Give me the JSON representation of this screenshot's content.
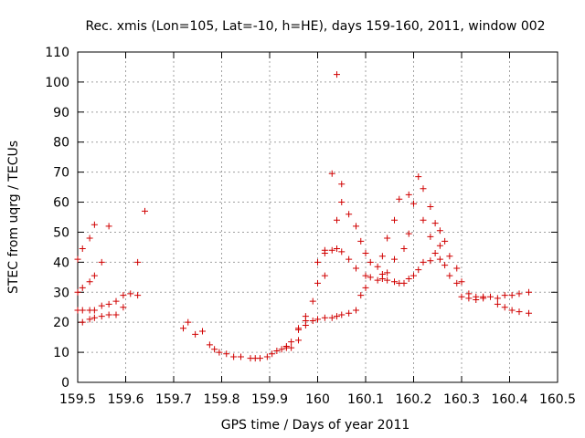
{
  "chart_data": {
    "type": "scatter",
    "title": "Rec. xmis (Lon=105, Lat=-10, h=HE), days 159-160, 2011, window 002",
    "xlabel": "GPS time / Days of year 2011",
    "ylabel": "STEC from uqrg / TECUs",
    "xlim": [
      159.5,
      160.5
    ],
    "ylim": [
      0,
      110
    ],
    "xticks": [
      159.5,
      159.6,
      159.7,
      159.8,
      159.9,
      160,
      160.1,
      160.2,
      160.3,
      160.4,
      160.5
    ],
    "xtick_labels": [
      "159.5",
      "159.6",
      "159.7",
      "159.8",
      "159.9",
      "160",
      "160.1",
      "160.2",
      "160.3",
      "160.4",
      "160.5"
    ],
    "yticks": [
      0,
      10,
      20,
      30,
      40,
      50,
      60,
      70,
      80,
      90,
      100,
      110
    ],
    "ytick_labels": [
      "0",
      "10",
      "20",
      "30",
      "40",
      "50",
      "60",
      "70",
      "80",
      "90",
      "100",
      "110"
    ],
    "grid": true,
    "marker": "+",
    "point_color": "#d00000",
    "points": [
      [
        159.5,
        41.0
      ],
      [
        159.5,
        30.0
      ],
      [
        159.5,
        24.0
      ],
      [
        159.51,
        44.5
      ],
      [
        159.51,
        31.5
      ],
      [
        159.51,
        24.0
      ],
      [
        159.51,
        20.0
      ],
      [
        159.525,
        48.0
      ],
      [
        159.525,
        33.5
      ],
      [
        159.525,
        24.0
      ],
      [
        159.525,
        21.0
      ],
      [
        159.535,
        52.5
      ],
      [
        159.535,
        35.5
      ],
      [
        159.535,
        24.0
      ],
      [
        159.535,
        21.5
      ],
      [
        159.55,
        40.0
      ],
      [
        159.55,
        25.5
      ],
      [
        159.55,
        22.0
      ],
      [
        159.565,
        52.0
      ],
      [
        159.565,
        26.0
      ],
      [
        159.565,
        22.5
      ],
      [
        159.58,
        27.0
      ],
      [
        159.58,
        22.5
      ],
      [
        159.595,
        29.0
      ],
      [
        159.595,
        25.0
      ],
      [
        159.61,
        29.5
      ],
      [
        159.625,
        40.0
      ],
      [
        159.625,
        29.0
      ],
      [
        159.64,
        57.0
      ],
      [
        159.72,
        18.0
      ],
      [
        159.73,
        20.0
      ],
      [
        159.745,
        16.0
      ],
      [
        159.76,
        17.0
      ],
      [
        159.775,
        12.5
      ],
      [
        159.785,
        11.0
      ],
      [
        159.795,
        10.0
      ],
      [
        159.81,
        9.5
      ],
      [
        159.825,
        8.5
      ],
      [
        159.84,
        8.5
      ],
      [
        159.86,
        8.0
      ],
      [
        159.87,
        8.0
      ],
      [
        159.88,
        8.0
      ],
      [
        159.895,
        8.5
      ],
      [
        159.905,
        9.5
      ],
      [
        159.915,
        10.5
      ],
      [
        159.925,
        11.0
      ],
      [
        159.935,
        12.0
      ],
      [
        159.935,
        11.5
      ],
      [
        159.945,
        13.5
      ],
      [
        159.945,
        11.5
      ],
      [
        159.96,
        18.0
      ],
      [
        159.96,
        17.5
      ],
      [
        159.96,
        14.0
      ],
      [
        159.975,
        22.0
      ],
      [
        159.975,
        20.5
      ],
      [
        159.975,
        19.0
      ],
      [
        159.99,
        27.0
      ],
      [
        159.99,
        20.5
      ],
      [
        160.0,
        40.0
      ],
      [
        160.0,
        33.0
      ],
      [
        160.0,
        21.0
      ],
      [
        160.015,
        44.0
      ],
      [
        160.015,
        43.0
      ],
      [
        160.015,
        35.5
      ],
      [
        160.015,
        21.5
      ],
      [
        160.03,
        69.5
      ],
      [
        160.03,
        44.0
      ],
      [
        160.03,
        21.5
      ],
      [
        160.04,
        102.5
      ],
      [
        160.04,
        54.0
      ],
      [
        160.04,
        44.5
      ],
      [
        160.04,
        22.0
      ],
      [
        160.05,
        66.0
      ],
      [
        160.05,
        60.0
      ],
      [
        160.05,
        43.5
      ],
      [
        160.05,
        22.5
      ],
      [
        160.065,
        56.0
      ],
      [
        160.065,
        41.0
      ],
      [
        160.065,
        23.0
      ],
      [
        160.08,
        52.0
      ],
      [
        160.08,
        38.0
      ],
      [
        160.08,
        24.0
      ],
      [
        160.09,
        47.0
      ],
      [
        160.09,
        29.0
      ],
      [
        160.1,
        43.0
      ],
      [
        160.1,
        35.5
      ],
      [
        160.1,
        31.5
      ],
      [
        160.11,
        40.0
      ],
      [
        160.11,
        35.0
      ],
      [
        160.125,
        38.5
      ],
      [
        160.125,
        34.0
      ],
      [
        160.135,
        42.0
      ],
      [
        160.135,
        36.0
      ],
      [
        160.135,
        34.5
      ],
      [
        160.145,
        48.0
      ],
      [
        160.145,
        36.5
      ],
      [
        160.145,
        34.0
      ],
      [
        160.16,
        54.0
      ],
      [
        160.16,
        41.0
      ],
      [
        160.16,
        33.5
      ],
      [
        160.17,
        61.0
      ],
      [
        160.17,
        33.0
      ],
      [
        160.18,
        44.5
      ],
      [
        160.18,
        33.0
      ],
      [
        160.19,
        62.5
      ],
      [
        160.19,
        49.5
      ],
      [
        160.19,
        34.5
      ],
      [
        160.2,
        59.5
      ],
      [
        160.2,
        35.5
      ],
      [
        160.21,
        68.5
      ],
      [
        160.21,
        37.5
      ],
      [
        160.22,
        64.5
      ],
      [
        160.22,
        54.0
      ],
      [
        160.22,
        40.0
      ],
      [
        160.235,
        58.5
      ],
      [
        160.235,
        48.5
      ],
      [
        160.235,
        40.5
      ],
      [
        160.245,
        53.0
      ],
      [
        160.245,
        43.0
      ],
      [
        160.255,
        50.5
      ],
      [
        160.255,
        45.5
      ],
      [
        160.255,
        41.0
      ],
      [
        160.265,
        47.0
      ],
      [
        160.265,
        39.0
      ],
      [
        160.275,
        42.0
      ],
      [
        160.275,
        35.5
      ],
      [
        160.29,
        38.0
      ],
      [
        160.29,
        33.0
      ],
      [
        160.3,
        33.5
      ],
      [
        160.3,
        28.5
      ],
      [
        160.315,
        29.5
      ],
      [
        160.315,
        28.0
      ],
      [
        160.33,
        28.5
      ],
      [
        160.33,
        27.5
      ],
      [
        160.345,
        28.5
      ],
      [
        160.345,
        28.0
      ],
      [
        160.36,
        28.5
      ],
      [
        160.375,
        28.0
      ],
      [
        160.375,
        26.0
      ],
      [
        160.39,
        29.0
      ],
      [
        160.39,
        25.0
      ],
      [
        160.405,
        29.0
      ],
      [
        160.405,
        24.0
      ],
      [
        160.42,
        29.5
      ],
      [
        160.42,
        23.5
      ],
      [
        160.44,
        30.0
      ],
      [
        160.44,
        23.0
      ]
    ]
  }
}
